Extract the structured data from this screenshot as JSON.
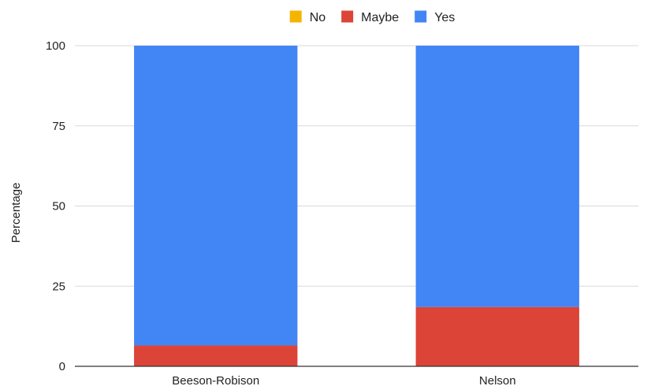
{
  "chart_data": {
    "type": "bar",
    "stacked": true,
    "categories": [
      "Beeson-Robison",
      "Nelson"
    ],
    "series": [
      {
        "name": "No",
        "values": [
          0,
          0
        ],
        "color": "#F4B400"
      },
      {
        "name": "Maybe",
        "values": [
          6.5,
          18.5
        ],
        "color": "#DB4437"
      },
      {
        "name": "Yes",
        "values": [
          93.5,
          81.5
        ],
        "color": "#4285F4"
      }
    ],
    "title": "",
    "xlabel": "",
    "ylabel": "Percentage",
    "ylim": [
      0,
      100
    ],
    "yticks": [
      0,
      25,
      50,
      75,
      100
    ],
    "grid": true,
    "legend_position": "top"
  }
}
